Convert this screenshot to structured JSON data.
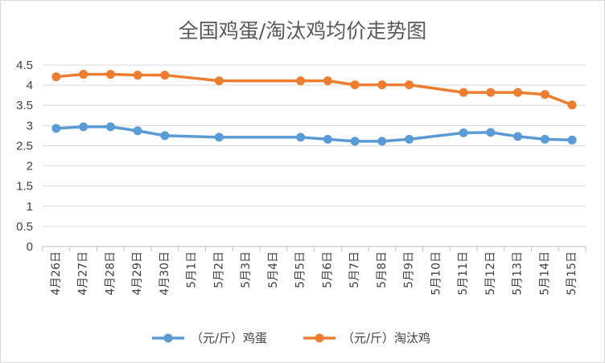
{
  "chart_data": {
    "type": "line",
    "title": "全国鸡蛋/淘汰鸡均价走势图",
    "xlabel": "",
    "ylabel": "",
    "categories": [
      "4月26日",
      "4月27日",
      "4月28日",
      "4月29日",
      "4月30日",
      "5月1日",
      "5月2日",
      "5月3日",
      "5月4日",
      "5月5日",
      "5月6日",
      "5月7日",
      "5月8日",
      "5月9日",
      "5月10日",
      "5月11日",
      "5月12日",
      "5月13日",
      "5月14日",
      "5月15日"
    ],
    "ylim": [
      0,
      4.5
    ],
    "yticks": [
      "0",
      "0.5",
      "1",
      "1.5",
      "2",
      "2.5",
      "3",
      "3.5",
      "4",
      "4.5"
    ],
    "grid": true,
    "legend_position": "bottom",
    "series": [
      {
        "name": "（元/斤）鸡蛋",
        "color": "#5B9BD5",
        "values": [
          2.93,
          2.97,
          2.97,
          2.87,
          2.75,
          null,
          2.71,
          null,
          null,
          2.71,
          2.66,
          2.61,
          2.61,
          2.66,
          null,
          2.82,
          2.83,
          2.73,
          2.66,
          2.64
        ]
      },
      {
        "name": "（元/斤）淘汰鸡",
        "color": "#ED7D31",
        "values": [
          4.21,
          4.27,
          4.27,
          4.25,
          4.25,
          null,
          4.11,
          null,
          null,
          4.11,
          4.11,
          4.01,
          4.01,
          4.01,
          null,
          3.82,
          3.82,
          3.82,
          3.77,
          3.51
        ]
      }
    ]
  }
}
